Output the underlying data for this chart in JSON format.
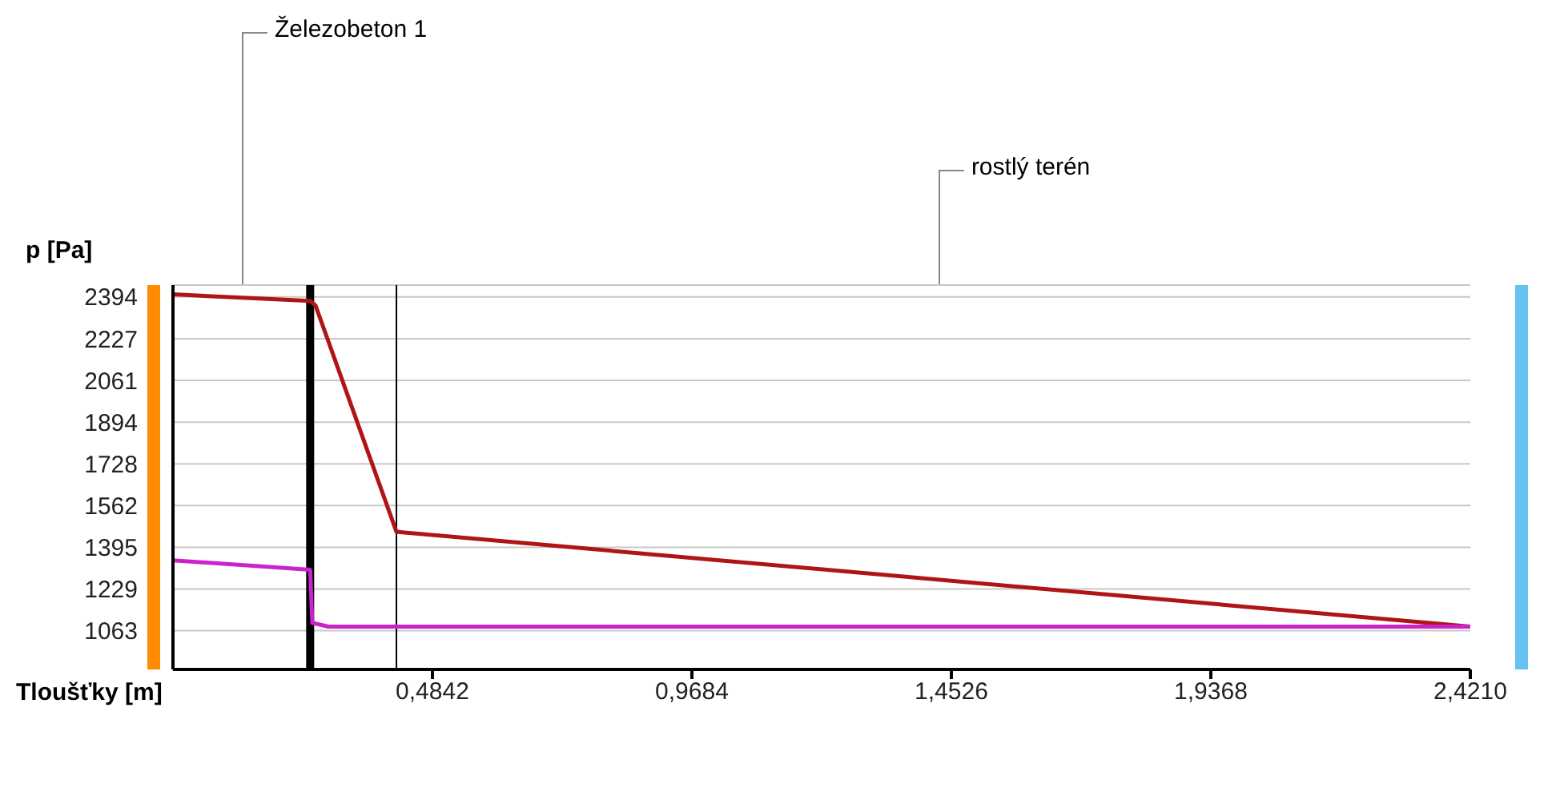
{
  "chart_data": {
    "type": "line",
    "xlabel": "Tloušťky [m]",
    "ylabel": "p [Pa]",
    "annotations": [
      "Železobeton 1",
      "rostlý terén"
    ],
    "xlim": [
      0,
      2.421
    ],
    "xticks": [
      {
        "value": 0.4842,
        "label": "0,4842"
      },
      {
        "value": 0.9684,
        "label": "0,9684"
      },
      {
        "value": 1.4526,
        "label": "1,4526"
      },
      {
        "value": 1.9368,
        "label": "1,9368"
      },
      {
        "value": 2.421,
        "label": "2,4210"
      }
    ],
    "ylim": [
      908,
      2441
    ],
    "yticks": [
      1063,
      1229,
      1395,
      1562,
      1728,
      1894,
      2061,
      2227,
      2394
    ],
    "grid": "y",
    "marker": "none",
    "line_style": "solid",
    "ref_lines": [
      {
        "axis": "x",
        "value": 0.256,
        "color": "#000000"
      },
      {
        "axis": "x",
        "value": 0.417,
        "color": "#000000"
      }
    ],
    "series": [
      {
        "color": "#b01515",
        "x": [
          0,
          0.256,
          0.266,
          0.417,
          2.421
        ],
        "values": [
          2404,
          2378,
          2360,
          1457,
          1079
        ]
      },
      {
        "color": "#cc22cc",
        "x": [
          0,
          0.256,
          0.26,
          0.29,
          2.421
        ],
        "values": [
          1343,
          1306,
          1094,
          1079,
          1079
        ]
      }
    ]
  }
}
